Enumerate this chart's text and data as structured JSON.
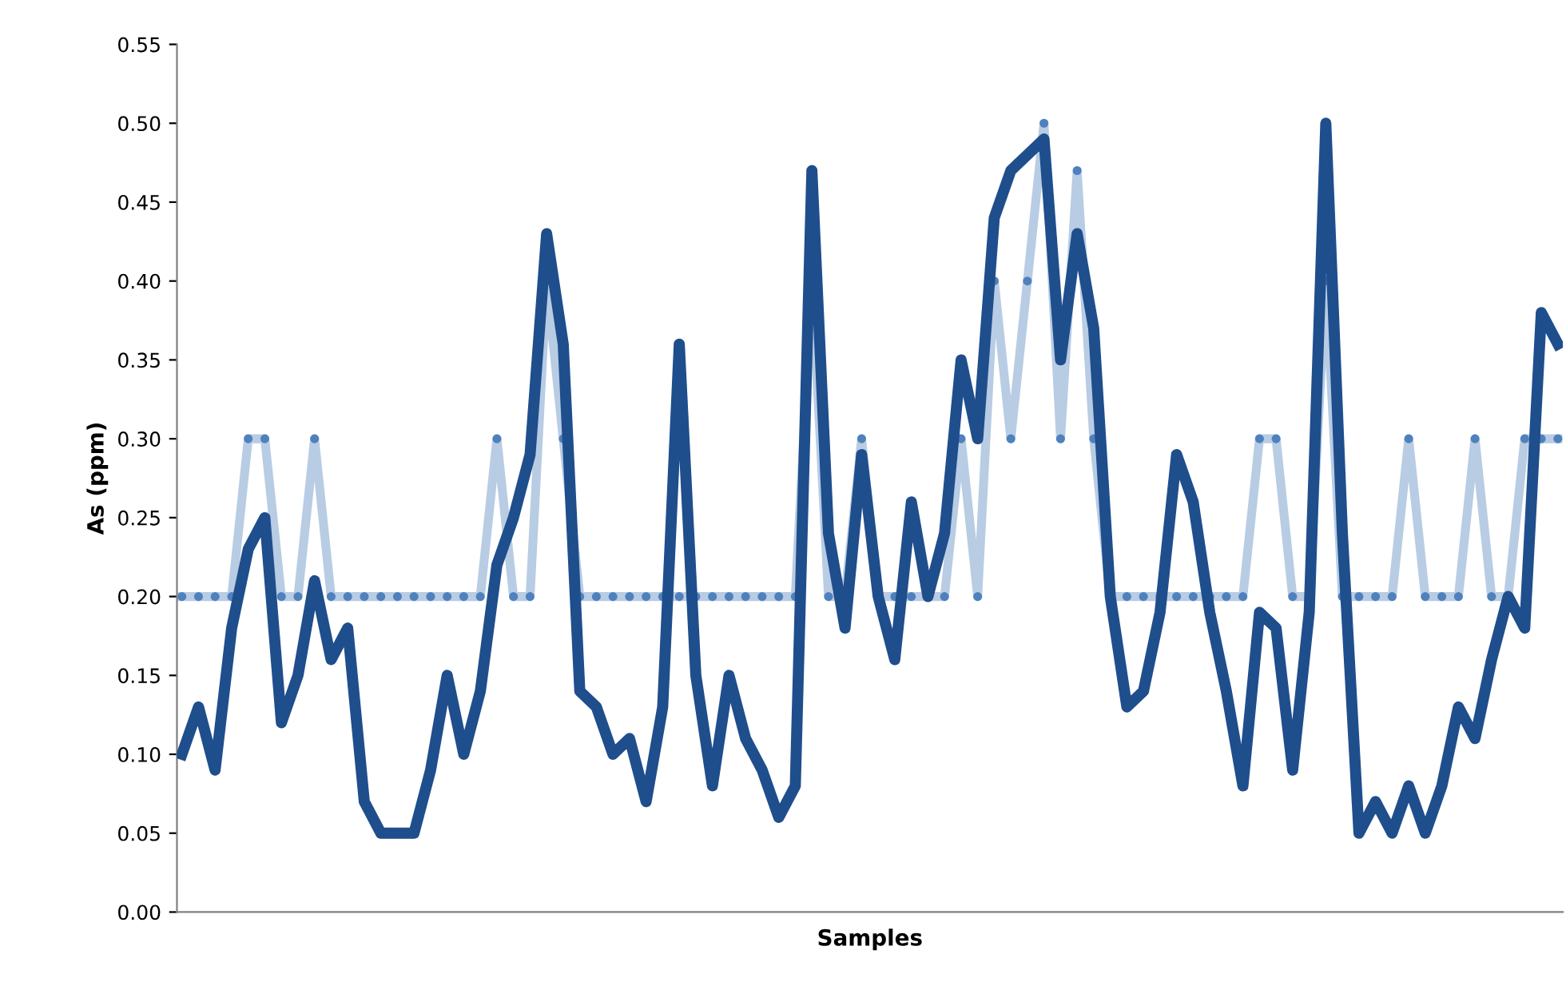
{
  "chart_data": {
    "type": "line",
    "xlabel": "Samples",
    "ylabel": "As (ppm)",
    "categories": [
      null,
      null,
      null,
      null,
      null,
      null,
      null,
      null,
      null,
      null,
      null,
      null,
      null,
      null,
      null,
      null,
      null,
      null,
      null,
      null,
      null,
      null,
      null,
      null,
      null,
      null,
      null,
      null,
      null,
      null,
      null,
      null,
      null,
      null,
      null,
      null,
      null,
      null,
      null,
      null,
      null,
      null,
      null,
      null,
      null,
      null,
      null,
      null,
      null,
      null,
      null,
      null,
      null,
      null,
      null,
      null,
      null,
      null,
      null,
      null,
      null,
      null,
      null,
      null,
      null,
      null,
      null,
      null,
      null,
      null,
      null,
      null,
      null,
      null,
      null,
      null,
      null,
      null,
      null,
      null,
      null,
      null,
      null,
      null
    ],
    "series": [
      {
        "color": "#b8cce4",
        "marker": "circle",
        "values": [
          0.2,
          0.2,
          0.2,
          0.2,
          0.3,
          0.3,
          0.2,
          0.2,
          0.3,
          0.2,
          0.2,
          0.2,
          0.2,
          0.2,
          0.2,
          0.2,
          0.2,
          0.2,
          0.2,
          0.3,
          0.2,
          0.2,
          0.4,
          0.3,
          0.2,
          0.2,
          0.2,
          0.2,
          0.2,
          0.2,
          0.2,
          0.2,
          0.2,
          0.2,
          0.2,
          0.2,
          0.2,
          0.2,
          0.4,
          0.2,
          0.2,
          0.3,
          0.2,
          0.2,
          0.2,
          0.2,
          0.2,
          0.3,
          0.2,
          0.4,
          0.3,
          0.4,
          0.5,
          0.3,
          0.47,
          0.3,
          0.2,
          0.2,
          0.2,
          0.2,
          0.2,
          0.2,
          0.2,
          0.2,
          0.2,
          0.3,
          0.3,
          0.2,
          0.2,
          0.4,
          0.2,
          0.2,
          0.2,
          0.2,
          0.3,
          0.2,
          0.2,
          0.2,
          0.3,
          0.2,
          0.2,
          0.3,
          0.3,
          0.3
        ]
      },
      {
        "color": "#1f4e8c",
        "marker": "none",
        "values": [
          0.1,
          0.13,
          0.09,
          0.18,
          0.23,
          0.25,
          0.12,
          0.15,
          0.21,
          0.16,
          0.18,
          0.07,
          0.05,
          0.05,
          0.05,
          0.09,
          0.15,
          0.1,
          0.14,
          0.22,
          0.25,
          0.29,
          0.43,
          0.36,
          0.14,
          0.13,
          0.1,
          0.11,
          0.07,
          0.13,
          0.36,
          0.15,
          0.08,
          0.15,
          0.11,
          0.09,
          0.06,
          0.08,
          0.47,
          0.24,
          0.18,
          0.29,
          0.2,
          0.16,
          0.26,
          0.2,
          0.24,
          0.35,
          0.3,
          0.44,
          0.47,
          0.48,
          0.49,
          0.35,
          0.43,
          0.37,
          0.2,
          0.13,
          0.14,
          0.19,
          0.29,
          0.26,
          0.19,
          0.14,
          0.08,
          0.19,
          0.18,
          0.09,
          0.19,
          0.5,
          0.24,
          0.05,
          0.07,
          0.05,
          0.08,
          0.05,
          0.08,
          0.13,
          0.11,
          0.16,
          0.2,
          0.18,
          0.38,
          0.36
        ]
      }
    ],
    "ylim": [
      0,
      0.55
    ],
    "yticks": [
      {
        "value": 0,
        "label": "0.00"
      },
      {
        "value": 0.05,
        "label": "0.05"
      },
      {
        "value": 0.1,
        "label": "0.10"
      },
      {
        "value": 0.15,
        "label": "0.15"
      },
      {
        "value": 0.2,
        "label": "0.20"
      },
      {
        "value": 0.25,
        "label": "0.25"
      },
      {
        "value": 0.3,
        "label": "0.30"
      },
      {
        "value": 0.35,
        "label": "0.35"
      },
      {
        "value": 0.4,
        "label": "0.40"
      },
      {
        "value": 0.45,
        "label": "0.45"
      },
      {
        "value": 0.5,
        "label": "0.50"
      },
      {
        "value": 0.55,
        "label": "0.55"
      }
    ],
    "grid": false
  }
}
